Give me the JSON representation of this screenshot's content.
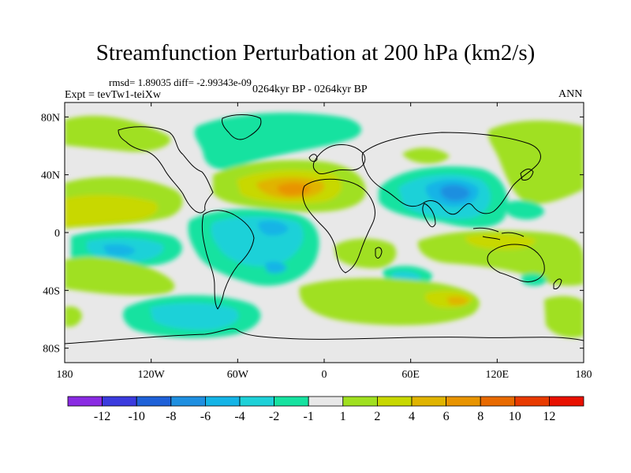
{
  "title": "Streamfunction Perturbation at 200 hPa (km2/s)",
  "stats_line": "rmsd= 1.89035 diff= -2.99343e-09",
  "experiment_line": "Expt = tevTw1-teiXw",
  "period_line": "0264kyr BP - 0264kyr BP",
  "season": "ANN",
  "projection": "cylindrical equidistant, global",
  "lon_ticks": [
    "180",
    "120W",
    "60W",
    "0",
    "60E",
    "120E",
    "180"
  ],
  "lat_ticks": [
    "80N",
    "40N",
    "0",
    "40S",
    "80S"
  ],
  "colorbar": {
    "labels": [
      "-12",
      "-10",
      "-8",
      "-6",
      "-4",
      "-2",
      "-1",
      "1",
      "2",
      "4",
      "6",
      "8",
      "10",
      "12"
    ],
    "colors": [
      "#8a2be2",
      "#3b3bde",
      "#1f61d8",
      "#1f8fe0",
      "#14b4e6",
      "#1ed1d8",
      "#16e2a0",
      "#e8e8e8",
      "#a0e020",
      "#c8d800",
      "#e0b400",
      "#e89400",
      "#e86a00",
      "#e83a00",
      "#e81000"
    ]
  },
  "colors": {
    "background_zero_band": "#e8e8e8",
    "coastline": "#000000"
  }
}
